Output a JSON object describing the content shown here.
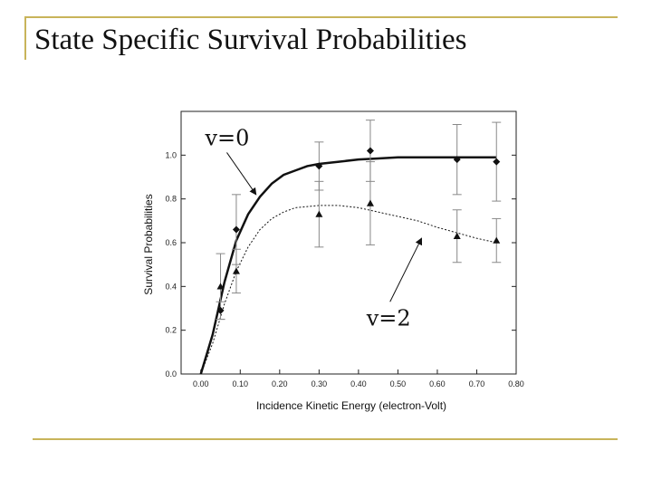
{
  "slide": {
    "title": "State Specific Survival Probabilities"
  },
  "chart_data": {
    "type": "scatter",
    "xlabel": "Incidence Kinetic Energy (electron-Volt)",
    "ylabel": "Survival Probabilities",
    "xlim": [
      -0.05,
      0.8
    ],
    "ylim": [
      0.0,
      1.2
    ],
    "xticks": [
      "0.00",
      "0.10",
      "0.20",
      "0.30",
      "0.40",
      "0.50",
      "0.60",
      "0.70",
      "0.80"
    ],
    "yticks": [
      "0.0",
      "0.2",
      "0.4",
      "0.6",
      "0.8",
      "1.0"
    ],
    "series": [
      {
        "name": "v=0",
        "marker": "diamond",
        "x": [
          0.05,
          0.09,
          0.3,
          0.43,
          0.65,
          0.75
        ],
        "y": [
          0.29,
          0.66,
          0.95,
          1.02,
          0.98,
          0.97
        ],
        "err": [
          0.04,
          0.16,
          0.11,
          0.14,
          0.16,
          0.18
        ]
      },
      {
        "name": "v=2",
        "marker": "triangle",
        "x": [
          0.05,
          0.09,
          0.3,
          0.43,
          0.65,
          0.75
        ],
        "y": [
          0.4,
          0.47,
          0.73,
          0.78,
          0.63,
          0.61
        ],
        "err": [
          0.15,
          0.1,
          0.15,
          0.19,
          0.12,
          0.1
        ]
      }
    ],
    "fits": [
      {
        "series": "v=0",
        "style": "solid",
        "x": [
          0.0,
          0.03,
          0.06,
          0.09,
          0.12,
          0.15,
          0.18,
          0.21,
          0.24,
          0.27,
          0.3,
          0.35,
          0.4,
          0.45,
          0.5,
          0.55,
          0.6,
          0.65,
          0.7,
          0.75
        ],
        "y": [
          0.0,
          0.18,
          0.42,
          0.61,
          0.73,
          0.81,
          0.87,
          0.91,
          0.93,
          0.95,
          0.96,
          0.97,
          0.98,
          0.985,
          0.99,
          0.99,
          0.99,
          0.99,
          0.99,
          0.99
        ]
      },
      {
        "series": "v=2",
        "style": "dotted",
        "x": [
          0.0,
          0.03,
          0.06,
          0.09,
          0.12,
          0.15,
          0.18,
          0.21,
          0.24,
          0.27,
          0.3,
          0.35,
          0.4,
          0.45,
          0.5,
          0.55,
          0.6,
          0.65,
          0.7,
          0.75
        ],
        "y": [
          0.0,
          0.14,
          0.32,
          0.47,
          0.58,
          0.66,
          0.71,
          0.74,
          0.76,
          0.765,
          0.77,
          0.77,
          0.76,
          0.74,
          0.72,
          0.7,
          0.67,
          0.645,
          0.62,
          0.6
        ]
      }
    ],
    "annotations": [
      {
        "text": "v=0",
        "from": [
          0.02,
          1.07
        ],
        "to": [
          0.14,
          0.82
        ]
      },
      {
        "text": "v=2",
        "from": [
          0.48,
          0.33
        ],
        "to": [
          0.56,
          0.62
        ]
      }
    ],
    "grid": false,
    "legend": "none"
  }
}
